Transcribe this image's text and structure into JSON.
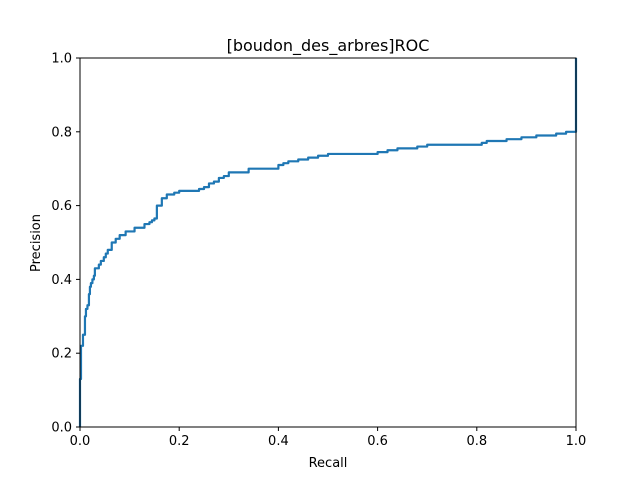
{
  "chart_data": {
    "type": "line",
    "title": "[boudon_des_arbres]ROC",
    "xlabel": "Recall",
    "ylabel": "Precision",
    "xlim": [
      0.0,
      1.0
    ],
    "ylim": [
      0.0,
      1.0
    ],
    "xticks": [
      "0.0",
      "0.2",
      "0.4",
      "0.6",
      "0.8",
      "1.0"
    ],
    "yticks": [
      "0.0",
      "0.2",
      "0.4",
      "0.6",
      "0.8",
      "1.0"
    ],
    "grid": false,
    "legend": "none",
    "series": [
      {
        "color": "#1f77b4",
        "x": [
          0.0,
          0.0,
          0.002,
          0.004,
          0.006,
          0.008,
          0.01,
          0.012,
          0.015,
          0.018,
          0.02,
          0.022,
          0.025,
          0.028,
          0.03,
          0.034,
          0.038,
          0.042,
          0.048,
          0.052,
          0.056,
          0.06,
          0.064,
          0.068,
          0.072,
          0.076,
          0.08,
          0.086,
          0.092,
          0.1,
          0.11,
          0.12,
          0.13,
          0.14,
          0.145,
          0.15,
          0.155,
          0.16,
          0.165,
          0.17,
          0.175,
          0.18,
          0.19,
          0.2,
          0.22,
          0.24,
          0.25,
          0.26,
          0.27,
          0.28,
          0.29,
          0.3,
          0.32,
          0.34,
          0.36,
          0.4,
          0.41,
          0.42,
          0.44,
          0.46,
          0.48,
          0.5,
          0.55,
          0.6,
          0.61,
          0.62,
          0.64,
          0.66,
          0.68,
          0.7,
          0.75,
          0.78,
          0.8,
          0.81,
          0.82,
          0.84,
          0.86,
          0.88,
          0.89,
          0.9,
          0.92,
          0.94,
          0.96,
          0.98,
          0.99,
          1.0,
          1.0
        ],
        "y": [
          0.0,
          0.13,
          0.22,
          0.22,
          0.25,
          0.25,
          0.3,
          0.32,
          0.33,
          0.36,
          0.38,
          0.39,
          0.4,
          0.41,
          0.43,
          0.43,
          0.44,
          0.45,
          0.46,
          0.47,
          0.48,
          0.48,
          0.5,
          0.5,
          0.51,
          0.51,
          0.52,
          0.52,
          0.53,
          0.53,
          0.54,
          0.54,
          0.55,
          0.555,
          0.56,
          0.565,
          0.6,
          0.6,
          0.62,
          0.62,
          0.63,
          0.63,
          0.635,
          0.64,
          0.64,
          0.645,
          0.65,
          0.66,
          0.665,
          0.675,
          0.68,
          0.69,
          0.69,
          0.7,
          0.7,
          0.71,
          0.715,
          0.72,
          0.725,
          0.73,
          0.735,
          0.74,
          0.74,
          0.745,
          0.745,
          0.75,
          0.755,
          0.755,
          0.76,
          0.765,
          0.765,
          0.765,
          0.765,
          0.77,
          0.775,
          0.775,
          0.78,
          0.78,
          0.785,
          0.785,
          0.79,
          0.79,
          0.795,
          0.8,
          0.8,
          0.8,
          1.0
        ]
      }
    ]
  }
}
